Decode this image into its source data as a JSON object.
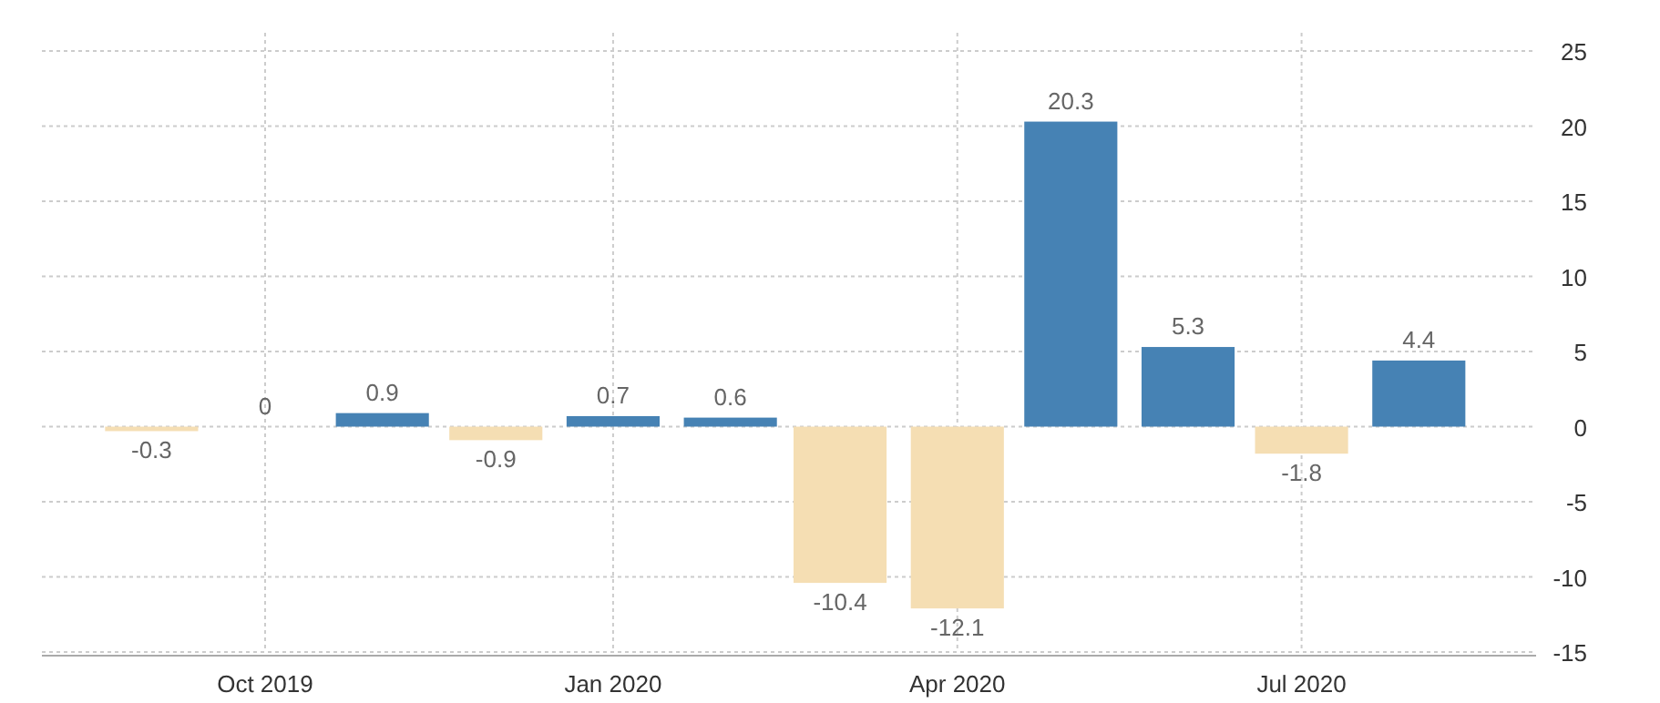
{
  "chart_data": {
    "type": "bar",
    "x": [
      "2019-09",
      "2019-10",
      "2019-11",
      "2019-12",
      "2020-01",
      "2020-02",
      "2020-03",
      "2020-04",
      "2020-05",
      "2020-06",
      "2020-07",
      "2020-08"
    ],
    "values": [
      -0.3,
      0,
      0.9,
      -0.9,
      0.7,
      0.6,
      -10.4,
      -12.1,
      20.3,
      5.3,
      -1.8,
      4.4
    ],
    "colors": [
      "#f5deb3",
      "#4682b4",
      "#4682b4",
      "#f5deb3",
      "#4682b4",
      "#4682b4",
      "#f5deb3",
      "#f5deb3",
      "#4682b4",
      "#4682b4",
      "#f5deb3",
      "#4682b4"
    ],
    "xlim": [
      "2019-08-03",
      "2020-09-01"
    ],
    "xticks": [
      {
        "value": "2019-10",
        "label": "Oct 2019"
      },
      {
        "value": "2020-01",
        "label": "Jan 2020"
      },
      {
        "value": "2020-04",
        "label": "Apr 2020"
      },
      {
        "value": "2020-07",
        "label": "Jul 2020"
      }
    ],
    "ylim": [
      -15,
      25
    ],
    "yticks": [
      -15,
      -10,
      -5,
      0,
      5,
      10,
      15,
      20,
      25
    ],
    "grid": true,
    "data_labels": true
  }
}
